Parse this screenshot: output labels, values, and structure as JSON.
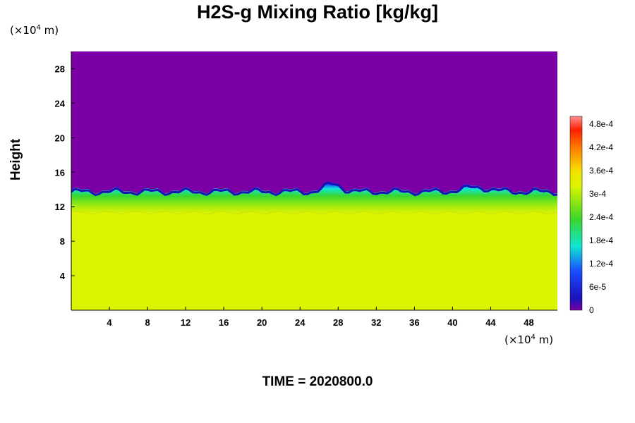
{
  "chart_data": {
    "type": "heatmap",
    "title": "H2S-g Mixing Ratio [kg/kg]",
    "ylabel": "Height",
    "xunit": "(×10⁴ m)",
    "yunit": "(×10⁴ m)",
    "footer": "TIME = 2020800.0",
    "x_ticks": [
      "4",
      "8",
      "12",
      "16",
      "20",
      "24",
      "28",
      "32",
      "36",
      "40",
      "44",
      "48"
    ],
    "y_ticks": [
      "4",
      "8",
      "12",
      "16",
      "20",
      "24",
      "28"
    ],
    "xlim": [
      0,
      51
    ],
    "ylim": [
      0,
      30
    ],
    "colorbar_ticks": [
      "0",
      "6e-5",
      "1.2e-4",
      "1.8e-4",
      "2.4e-4",
      "3e-4",
      "3.6e-4",
      "4.2e-4",
      "4.8e-4"
    ],
    "colorbar_range": [
      0,
      0.0005
    ],
    "fields": {
      "upper_value": 0,
      "lower_value": 0.00032,
      "interface_height_avg": 13.8,
      "transition_zone": [
        11.5,
        14.5
      ]
    },
    "colors": {
      "upper_layer": "#7a00a6",
      "lower_layer": "#dcf400",
      "band_green": "#3cd62a",
      "band_cyan": "#11e6d4",
      "band_blue": "#1a4cff",
      "band_dark_blue": "#1a12b8"
    }
  }
}
